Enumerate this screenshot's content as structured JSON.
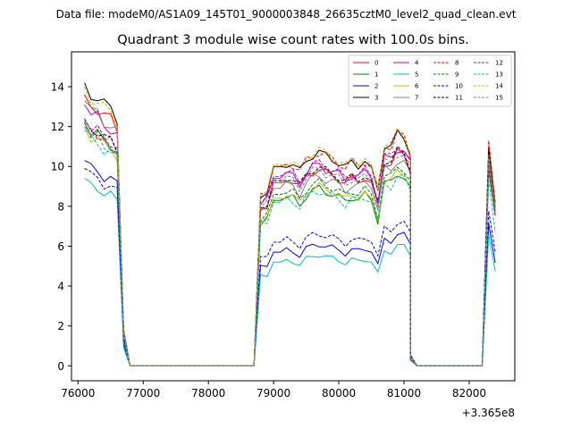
{
  "header": {
    "data_file": "Data file: modeM0/AS1A09_145T01_9000003848_26635cztM0_level2_quad_clean.evt"
  },
  "chart_data": {
    "type": "line",
    "title": "Quadrant 3 module wise count rates with 100.0s bins.",
    "xlabel": "",
    "ylabel": "",
    "x_offset_label": "+3.365e8",
    "xlim": [
      75900,
      82700
    ],
    "ylim": [
      -0.75,
      15.75
    ],
    "x_ticks": [
      76000,
      77000,
      78000,
      79000,
      80000,
      81000,
      82000
    ],
    "x_tick_labels": [
      "76000",
      "77000",
      "78000",
      "79000",
      "80000",
      "81000",
      "82000"
    ],
    "y_ticks": [
      0,
      2,
      4,
      6,
      8,
      10,
      12,
      14
    ],
    "y_tick_labels": [
      "0",
      "2",
      "4",
      "6",
      "8",
      "10",
      "12",
      "14"
    ],
    "grid": false,
    "legend_location": "top-right",
    "legend_columns": 4,
    "segments": [
      {
        "id": "seg1",
        "start": 76100,
        "step": 100,
        "length": 8,
        "pattern": [
          1,
          0.96,
          0.95,
          0.92,
          0.91,
          0.88,
          0.12,
          0
        ]
      },
      {
        "id": "seg2",
        "start": 76800,
        "step": 100,
        "length": 20,
        "pattern": [
          0
        ]
      },
      {
        "id": "seg3",
        "start": 78700,
        "step": 100,
        "length": 25,
        "pattern": [
          0,
          0.86,
          0.88,
          1,
          1,
          1.02,
          1.01,
          0.97,
          1.03,
          1.06,
          1.07,
          1.05,
          1.04,
          1.02,
          0.99,
          1.02,
          1.01,
          1.03,
          1.0,
          0.88,
          1.11,
          1.1,
          1.16,
          1.15,
          1.07
        ]
      },
      {
        "id": "seg4",
        "start": 81100,
        "step": 100,
        "length": 11,
        "pattern": [
          0.04,
          0,
          0,
          0,
          0,
          0,
          0,
          0,
          0,
          0,
          0
        ]
      },
      {
        "id": "seg5",
        "start": 82200,
        "step": 100,
        "length": 3,
        "pattern": [
          0,
          1.25,
          0.93
        ]
      }
    ],
    "series": [
      {
        "name": "0",
        "color": "#ff0000",
        "dashed": false,
        "levels": [
          13.6,
          9.2,
          8.7
        ]
      },
      {
        "name": "1",
        "color": "#008000",
        "dashed": false,
        "levels": [
          12.2,
          8.3,
          7.9
        ]
      },
      {
        "name": "2",
        "color": "#0000ff",
        "dashed": false,
        "levels": [
          10.3,
          5.7,
          5.6
        ]
      },
      {
        "name": "3",
        "color": "#000000",
        "dashed": false,
        "levels": [
          14.2,
          10.0,
          8.9
        ]
      },
      {
        "name": "4",
        "color": "#bf00bf",
        "dashed": false,
        "levels": [
          13.1,
          9.4,
          7.9
        ]
      },
      {
        "name": "5",
        "color": "#00bfbf",
        "dashed": false,
        "levels": [
          9.4,
          5.2,
          5.2
        ]
      },
      {
        "name": "6",
        "color": "#bfbf00",
        "dashed": false,
        "levels": [
          12.0,
          8.4,
          8.3
        ]
      },
      {
        "name": "7",
        "color": "#808080",
        "dashed": false,
        "levels": [
          13.3,
          8.9,
          8.2
        ]
      },
      {
        "name": "8",
        "color": "#ff0000",
        "dashed": true,
        "levels": [
          12.3,
          10.0,
          9.0
        ]
      },
      {
        "name": "9",
        "color": "#008000",
        "dashed": true,
        "levels": [
          12.2,
          8.6,
          8.1
        ]
      },
      {
        "name": "10",
        "color": "#0000ff",
        "dashed": true,
        "levels": [
          9.9,
          6.2,
          6.1
        ]
      },
      {
        "name": "11",
        "color": "#000000",
        "dashed": true,
        "levels": [
          12.4,
          9.3,
          8.7
        ]
      },
      {
        "name": "12",
        "color": "#bf00bf",
        "dashed": true,
        "levels": [
          12.4,
          9.5,
          8.3
        ]
      },
      {
        "name": "13",
        "color": "#00bfbf",
        "dashed": true,
        "levels": [
          11.8,
          8.2,
          7.3
        ]
      },
      {
        "name": "14",
        "color": "#bfbf00",
        "dashed": true,
        "levels": [
          14.0,
          10.1,
          8.6
        ]
      },
      {
        "name": "15",
        "color": "#808080",
        "dashed": true,
        "levels": [
          12.0,
          9.2,
          8.3
        ]
      }
    ]
  }
}
